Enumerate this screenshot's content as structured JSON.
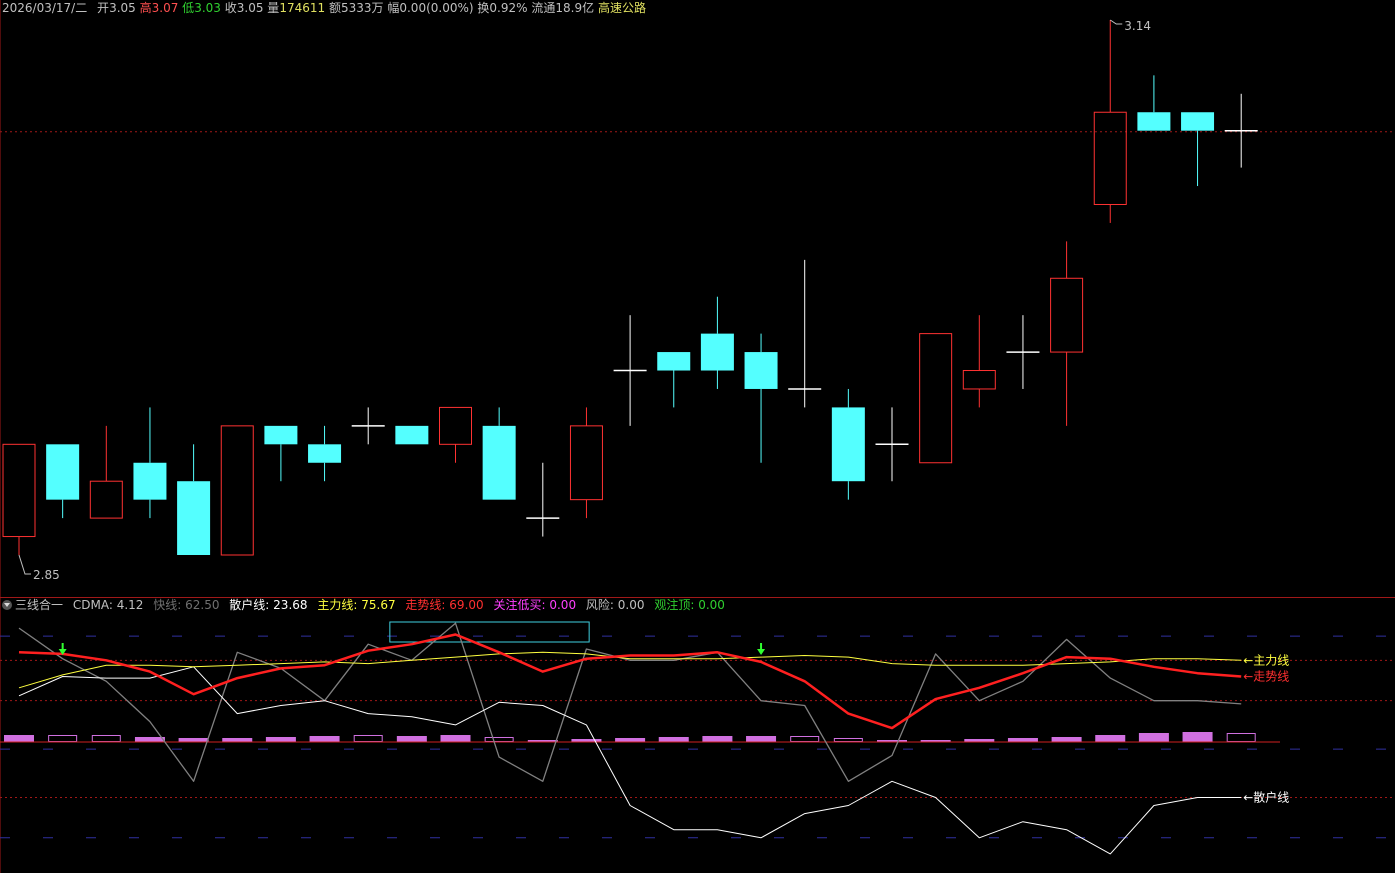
{
  "header": {
    "date": "2026/03/17/二",
    "open_label": "开",
    "open": "3.05",
    "high_label": "高",
    "high": "3.07",
    "low_label": "低",
    "low": "3.03",
    "close_label": "收",
    "close": "3.05",
    "vol_label": "量",
    "vol": "174611",
    "amount_label": "额",
    "amount": "5333万",
    "change_label": "幅",
    "change": "0.00(0.00%)",
    "turnover_label": "换",
    "turnover": "0.92%",
    "float_label": "流通",
    "float": "18.9亿",
    "sector": "高速公路"
  },
  "indicator": {
    "name": "三线合一",
    "cdma_label": "CDMA:",
    "cdma": "4.12",
    "fast_label": "快线:",
    "fast": "62.50",
    "retail_label": "散户线:",
    "retail": "23.68",
    "main_label": "主力线:",
    "main": "75.67",
    "trend_label": "走势线:",
    "trend": "69.00",
    "focus_label": "关注低买:",
    "focus": "0.00",
    "risk_label": "风险:",
    "risk": "0.00",
    "watch_label": "观注顶:",
    "watch": "0.00",
    "label_main_line": "←主力线",
    "label_trend_line": "←走势线",
    "label_retail_line": "←散户线"
  },
  "colors": {
    "up": "#ff3232",
    "down": "#54ffff",
    "flat": "#ffffff",
    "trend": "#ff2020",
    "main": "#ffff40",
    "retail": "#ffffff",
    "fast": "#808080",
    "bar": "#d070e0",
    "dotted": "#a01818",
    "dash": "#3030a0"
  },
  "chart_data": [
    {
      "type": "candlestick",
      "annotations": [
        {
          "label": "3.14",
          "value": 3.14,
          "kind": "max"
        },
        {
          "label": "2.85",
          "value": 2.85,
          "kind": "min"
        }
      ],
      "reference_line": 3.08,
      "candles": [
        {
          "o": 2.86,
          "h": 2.91,
          "l": 2.85,
          "c": 2.91
        },
        {
          "o": 2.91,
          "h": 2.91,
          "l": 2.87,
          "c": 2.88
        },
        {
          "o": 2.87,
          "h": 2.92,
          "l": 2.87,
          "c": 2.89
        },
        {
          "o": 2.9,
          "h": 2.93,
          "l": 2.87,
          "c": 2.88
        },
        {
          "o": 2.89,
          "h": 2.91,
          "l": 2.85,
          "c": 2.85
        },
        {
          "o": 2.85,
          "h": 2.92,
          "l": 2.85,
          "c": 2.92
        },
        {
          "o": 2.92,
          "h": 2.92,
          "l": 2.89,
          "c": 2.91
        },
        {
          "o": 2.91,
          "h": 2.92,
          "l": 2.89,
          "c": 2.9
        },
        {
          "o": 2.92,
          "h": 2.93,
          "l": 2.91,
          "c": 2.92
        },
        {
          "o": 2.92,
          "h": 2.92,
          "l": 2.91,
          "c": 2.91
        },
        {
          "o": 2.91,
          "h": 2.93,
          "l": 2.9,
          "c": 2.93
        },
        {
          "o": 2.92,
          "h": 2.93,
          "l": 2.88,
          "c": 2.88
        },
        {
          "o": 2.87,
          "h": 2.9,
          "l": 2.86,
          "c": 2.87
        },
        {
          "o": 2.88,
          "h": 2.93,
          "l": 2.87,
          "c": 2.92
        },
        {
          "o": 2.95,
          "h": 2.98,
          "l": 2.92,
          "c": 2.95
        },
        {
          "o": 2.96,
          "h": 2.96,
          "l": 2.93,
          "c": 2.95
        },
        {
          "o": 2.97,
          "h": 2.99,
          "l": 2.94,
          "c": 2.95
        },
        {
          "o": 2.96,
          "h": 2.97,
          "l": 2.9,
          "c": 2.94
        },
        {
          "o": 2.94,
          "h": 3.01,
          "l": 2.93,
          "c": 2.94
        },
        {
          "o": 2.93,
          "h": 2.94,
          "l": 2.88,
          "c": 2.89
        },
        {
          "o": 2.91,
          "h": 2.93,
          "l": 2.89,
          "c": 2.91
        },
        {
          "o": 2.9,
          "h": 2.97,
          "l": 2.9,
          "c": 2.97
        },
        {
          "o": 2.94,
          "h": 2.98,
          "l": 2.93,
          "c": 2.95
        },
        {
          "o": 2.96,
          "h": 2.98,
          "l": 2.94,
          "c": 2.96
        },
        {
          "o": 2.96,
          "h": 3.02,
          "l": 2.92,
          "c": 3.0
        },
        {
          "o": 3.04,
          "h": 3.14,
          "l": 3.03,
          "c": 3.09
        },
        {
          "o": 3.09,
          "h": 3.11,
          "l": 3.08,
          "c": 3.08
        },
        {
          "o": 3.09,
          "h": 3.09,
          "l": 3.05,
          "c": 3.08
        },
        {
          "o": 3.08,
          "h": 3.1,
          "l": 3.06,
          "c": 3.08
        }
      ]
    },
    {
      "type": "line",
      "series": [
        {
          "name": "主力线",
          "values": [
            58,
            66,
            72,
            72,
            71,
            72,
            73,
            74,
            73,
            75,
            77,
            79,
            80,
            79,
            76,
            76,
            76,
            77,
            78,
            77,
            73,
            72,
            72,
            72,
            73,
            74,
            76,
            76,
            75
          ]
        },
        {
          "name": "走势线",
          "values": [
            80,
            79,
            75,
            68,
            54,
            64,
            70,
            72,
            81,
            85,
            91,
            80,
            68,
            76,
            78,
            78,
            80,
            74,
            62,
            42,
            33,
            51,
            58,
            67,
            77,
            76,
            71,
            67,
            65
          ]
        },
        {
          "name": "散户线",
          "values": [
            53,
            65,
            64,
            64,
            71,
            42,
            47,
            50,
            42,
            40,
            35,
            49,
            47,
            35,
            -15,
            -30,
            -30,
            -35,
            -20,
            -15,
            0,
            -10,
            -35,
            -25,
            -30,
            -45,
            -15,
            -10,
            -10
          ]
        },
        {
          "name": "快线",
          "values": [
            95,
            76,
            62,
            37,
            0,
            80,
            70,
            50,
            85,
            75,
            98,
            15,
            0,
            82,
            75,
            75,
            80,
            50,
            47,
            0,
            16,
            79,
            50,
            62,
            88,
            64,
            50,
            50,
            48
          ]
        }
      ],
      "bars": [
        7,
        6,
        6,
        5,
        4,
        4,
        5,
        6,
        6,
        6,
        7,
        4,
        2,
        3,
        4,
        5,
        6,
        6,
        5,
        3,
        2,
        2,
        3,
        4,
        5,
        7,
        9,
        10,
        8
      ],
      "bars_outline_up": [
        0,
        1,
        1,
        0,
        0,
        0,
        0,
        0,
        1,
        0,
        0,
        1,
        0,
        0,
        0,
        0,
        0,
        0,
        1,
        1,
        0,
        0,
        0,
        0,
        0,
        0,
        0,
        0,
        1
      ],
      "signals_down_arrow": [
        1,
        17
      ],
      "highlight_range": [
        9,
        11
      ]
    }
  ]
}
